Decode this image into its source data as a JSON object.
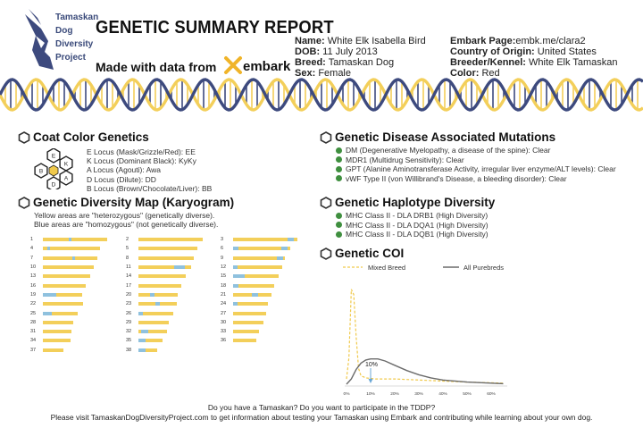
{
  "logo": {
    "lines": [
      "Tamaskan",
      "Dog",
      "Diversity",
      "Project"
    ]
  },
  "header": {
    "title": "GENETIC SUMMARY REPORT",
    "made_with": "Made with data from",
    "embark": "embark"
  },
  "info": {
    "name_label": "Name:",
    "name": "White Elk Isabella Bird",
    "dob_label": "DOB:",
    "dob": "11 July 2013",
    "breed_label": "Breed:",
    "breed": "Tamaskan Dog",
    "sex_label": "Sex:",
    "sex": "Female",
    "page_label": "Embark Page:",
    "page": "embk.me/clara2",
    "country_label": "Country of Origin:",
    "country": "United States",
    "breeder_label": "Breeder/Kennel:",
    "breeder": "White Elk Tamaskan",
    "color_label": "Color:",
    "color": "Red"
  },
  "coat": {
    "title": "Coat Color Genetics",
    "hex_letters": [
      "E",
      "K",
      "A",
      "D",
      "B"
    ],
    "lines": [
      "E Locus (Mask/Grizzle/Red): EE",
      "K Locus (Dominant Black): KyKy",
      "A Locus (Agouti): Awa",
      "D Locus (Dilute): DD",
      "B Locus (Brown/Chocolate/Liver): BB"
    ]
  },
  "diversity": {
    "title": "Genetic Diversity Map (Karyogram)",
    "line1": "Yellow areas are \"heterozygous\" (genetically diverse).",
    "line2": "Blue areas are \"homozygous\" (not genetically diverse).",
    "columns": [
      [
        {
          "n": "1",
          "len": 0.92,
          "blue": [
            [
              0.4,
              0.05
            ]
          ]
        },
        {
          "n": "4",
          "len": 0.82,
          "blue": [
            [
              0.08,
              0.05
            ]
          ]
        },
        {
          "n": "7",
          "len": 0.78,
          "blue": [
            [
              0.55,
              0.04
            ]
          ]
        },
        {
          "n": "10",
          "len": 0.73,
          "blue": []
        },
        {
          "n": "13",
          "len": 0.68,
          "blue": []
        },
        {
          "n": "16",
          "len": 0.62,
          "blue": []
        },
        {
          "n": "19",
          "len": 0.56,
          "blue": [
            [
              0.0,
              0.35
            ]
          ]
        },
        {
          "n": "22",
          "len": 0.58,
          "blue": []
        },
        {
          "n": "25",
          "len": 0.5,
          "blue": [
            [
              0.0,
              0.25
            ]
          ]
        },
        {
          "n": "28",
          "len": 0.44,
          "blue": []
        },
        {
          "n": "31",
          "len": 0.41,
          "blue": []
        },
        {
          "n": "34",
          "len": 0.4,
          "blue": []
        },
        {
          "n": "37",
          "len": 0.29,
          "blue": []
        }
      ],
      [
        {
          "n": "2",
          "len": 0.92,
          "blue": []
        },
        {
          "n": "5",
          "len": 0.85,
          "blue": []
        },
        {
          "n": "8",
          "len": 0.8,
          "blue": []
        },
        {
          "n": "11",
          "len": 0.76,
          "blue": [
            [
              0.68,
              0.2
            ]
          ]
        },
        {
          "n": "14",
          "len": 0.68,
          "blue": []
        },
        {
          "n": "17",
          "len": 0.62,
          "blue": []
        },
        {
          "n": "20",
          "len": 0.57,
          "blue": [
            [
              0.3,
              0.1
            ]
          ]
        },
        {
          "n": "23",
          "len": 0.55,
          "blue": [
            [
              0.45,
              0.12
            ]
          ]
        },
        {
          "n": "26",
          "len": 0.5,
          "blue": [
            [
              0.0,
              0.12
            ]
          ]
        },
        {
          "n": "29",
          "len": 0.44,
          "blue": []
        },
        {
          "n": "32",
          "len": 0.41,
          "blue": [
            [
              0.1,
              0.25
            ]
          ]
        },
        {
          "n": "35",
          "len": 0.35,
          "blue": [
            [
              0.0,
              0.3
            ]
          ]
        },
        {
          "n": "38",
          "len": 0.27,
          "blue": [
            [
              0.0,
              0.4
            ]
          ]
        }
      ],
      [
        {
          "n": "3",
          "len": 0.92,
          "blue": [
            [
              0.85,
              0.1
            ]
          ]
        },
        {
          "n": "6",
          "len": 0.82,
          "blue": [
            [
              0.0,
              0.1
            ],
            [
              0.85,
              0.1
            ]
          ]
        },
        {
          "n": "9",
          "len": 0.74,
          "blue": [
            [
              0.85,
              0.12
            ]
          ]
        },
        {
          "n": "12",
          "len": 0.7,
          "blue": [
            [
              0.0,
              0.1
            ]
          ]
        },
        {
          "n": "15",
          "len": 0.66,
          "blue": [
            [
              0.0,
              0.25
            ]
          ]
        },
        {
          "n": "18",
          "len": 0.59,
          "blue": [
            [
              0.0,
              0.12
            ]
          ]
        },
        {
          "n": "21",
          "len": 0.55,
          "blue": [
            [
              0.5,
              0.15
            ]
          ]
        },
        {
          "n": "24",
          "len": 0.5,
          "blue": [
            [
              0.0,
              0.12
            ]
          ]
        },
        {
          "n": "27",
          "len": 0.47,
          "blue": []
        },
        {
          "n": "30",
          "len": 0.44,
          "blue": []
        },
        {
          "n": "33",
          "len": 0.37,
          "blue": []
        },
        {
          "n": "36",
          "len": 0.33,
          "blue": []
        }
      ]
    ]
  },
  "disease": {
    "title": "Genetic Disease Associated Mutations",
    "lines": [
      "DM (Degenerative Myelopathy, a disease of the spine): Clear",
      "MDR1 (Multidrug Sensitivity): Clear",
      "GPT (Alanine Aminotransferase Activity, irregular liver enzyme/ALT levels): Clear",
      "vWF Type II (von Willibrand's Disease, a bleeding disorder): Clear"
    ]
  },
  "haplotype": {
    "title": "Genetic Haplotype Diversity",
    "lines": [
      "MHC Class II - DLA DRB1 (High Diversity)",
      "MHC Class II - DLA DQA1 (High Diversity)",
      "MHC Class II - DLA DQB1 (High Diversity)"
    ]
  },
  "coi": {
    "title": "Genetic COI",
    "legend_mixed": "Mixed Breed",
    "legend_pure": "All Purebreds",
    "marker_label": "10%",
    "marker_value": 10,
    "x_ticks": [
      "0%",
      "10%",
      "20%",
      "30%",
      "40%",
      "50%",
      "60%"
    ],
    "mixed_curve": [
      [
        0,
        0.05
      ],
      [
        1,
        0.25
      ],
      [
        2,
        0.9
      ],
      [
        3,
        0.85
      ],
      [
        4,
        0.45
      ],
      [
        5,
        0.15
      ],
      [
        6,
        0.08
      ],
      [
        8,
        0.06
      ],
      [
        12,
        0.05
      ],
      [
        20,
        0.05
      ],
      [
        30,
        0.04
      ],
      [
        40,
        0.03
      ],
      [
        50,
        0.02
      ],
      [
        65,
        0.01
      ]
    ],
    "pure_curve": [
      [
        0,
        0.0
      ],
      [
        2,
        0.05
      ],
      [
        4,
        0.14
      ],
      [
        6,
        0.2
      ],
      [
        8,
        0.23
      ],
      [
        10,
        0.24
      ],
      [
        13,
        0.24
      ],
      [
        16,
        0.22
      ],
      [
        20,
        0.18
      ],
      [
        25,
        0.13
      ],
      [
        30,
        0.09
      ],
      [
        35,
        0.06
      ],
      [
        40,
        0.04
      ],
      [
        50,
        0.02
      ],
      [
        65,
        0.005
      ]
    ],
    "colors": {
      "mixed": "#f0c94b",
      "pure": "#6b6b6b"
    }
  },
  "footer": {
    "line1": "Do you have a Tamaskan? Do you want to participate in the TDDP?",
    "line2": "Please visit TamaskanDogDiversityProject.com to get information about testing your Tamaskan using Embark and contributing while learning about your own dog."
  },
  "colors": {
    "yellow": "#f3cf5a",
    "blue": "#8fc1de",
    "navy": "#3d4a7e",
    "green": "#3f8f3f"
  }
}
